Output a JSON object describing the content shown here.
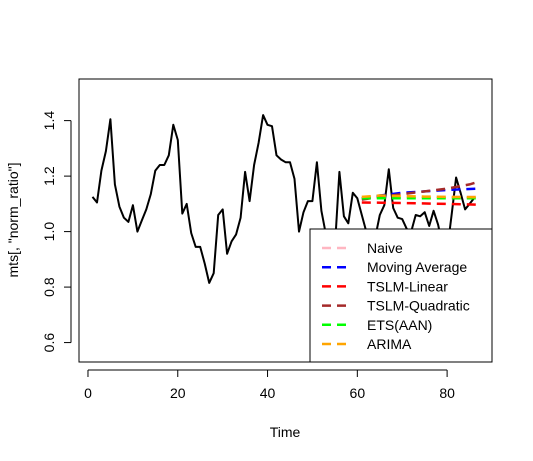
{
  "chart_data": {
    "type": "line",
    "xlabel": "Time",
    "ylabel": "mts[, \"norm_ratio\"]",
    "xlim": [
      -2,
      90
    ],
    "ylim": [
      0.53,
      1.55
    ],
    "x_ticks": [
      0,
      20,
      40,
      60,
      80
    ],
    "y_ticks": [
      0.6,
      0.8,
      1.0,
      1.2,
      1.4
    ],
    "x_tick_labels": [
      "0",
      "20",
      "40",
      "60",
      "80"
    ],
    "y_tick_labels": [
      "0.6",
      "0.8",
      "1.0",
      "1.2",
      "1.4"
    ],
    "grid": false,
    "legend_position": "bottom-right",
    "observed": {
      "color": "#000000",
      "x": [
        1,
        2,
        3,
        4,
        5,
        6,
        7,
        8,
        9,
        10,
        11,
        12,
        13,
        14,
        15,
        16,
        17,
        18,
        19,
        20,
        21,
        22,
        23,
        24,
        25,
        26,
        27,
        28,
        29,
        30,
        31,
        32,
        33,
        34,
        35,
        36,
        37,
        38,
        39,
        40,
        41,
        42,
        43,
        44,
        45,
        46,
        47,
        48,
        49,
        50,
        51,
        52,
        53,
        54,
        55,
        56,
        57,
        58,
        59,
        60,
        61,
        62,
        63,
        64,
        65,
        66,
        67,
        68,
        69,
        70,
        71,
        72,
        73,
        74,
        75,
        76,
        77,
        78,
        79,
        80,
        81,
        82,
        83,
        84,
        85,
        86
      ],
      "y": [
        1.125,
        1.105,
        1.22,
        1.29,
        1.405,
        1.17,
        1.09,
        1.05,
        1.035,
        1.095,
        1.0,
        1.04,
        1.08,
        1.135,
        1.22,
        1.24,
        1.24,
        1.275,
        1.385,
        1.33,
        1.065,
        1.1,
        0.995,
        0.945,
        0.945,
        0.885,
        0.815,
        0.85,
        1.06,
        1.08,
        0.92,
        0.965,
        0.99,
        1.05,
        1.215,
        1.11,
        1.24,
        1.32,
        1.42,
        1.385,
        1.38,
        1.275,
        1.26,
        1.25,
        1.25,
        1.19,
        1.0,
        1.07,
        1.11,
        1.11,
        1.25,
        1.075,
        0.99,
        0.95,
        0.945,
        1.215,
        1.055,
        1.03,
        1.14,
        1.12,
        1.06,
        1.0,
        0.93,
        0.98,
        1.06,
        1.095,
        1.225,
        1.085,
        1.05,
        1.045,
        1.01,
        1.0,
        1.06,
        1.055,
        1.07,
        1.02,
        1.075,
        1.025,
        0.95,
        0.93,
        1.06,
        1.195,
        1.14,
        1.08,
        1.1,
        1.12
      ]
    },
    "series": [
      {
        "name": "Naive",
        "color": "#FFB6C1",
        "x": [
          61,
          87
        ],
        "y": [
          1.125,
          1.125
        ]
      },
      {
        "name": "Moving Average",
        "color": "#0000FF",
        "x": [
          61,
          65,
          70,
          75,
          80,
          87
        ],
        "y": [
          1.12,
          1.13,
          1.14,
          1.145,
          1.15,
          1.155
        ]
      },
      {
        "name": "TSLM-Linear",
        "color": "#FF0000",
        "x": [
          61,
          70,
          80,
          87
        ],
        "y": [
          1.105,
          1.103,
          1.1,
          1.097
        ]
      },
      {
        "name": "TSLM-Quadratic",
        "color": "#A52A2A",
        "x": [
          61,
          65,
          70,
          75,
          80,
          85,
          87
        ],
        "y": [
          1.115,
          1.125,
          1.135,
          1.145,
          1.155,
          1.17,
          1.18
        ]
      },
      {
        "name": "ETS(AAN)",
        "color": "#00FF00",
        "x": [
          61,
          87
        ],
        "y": [
          1.12,
          1.12
        ]
      },
      {
        "name": "ARIMA",
        "color": "#FFA500",
        "x": [
          61,
          65,
          70,
          75,
          80,
          87
        ],
        "y": [
          1.125,
          1.13,
          1.128,
          1.126,
          1.125,
          1.124
        ]
      }
    ]
  }
}
